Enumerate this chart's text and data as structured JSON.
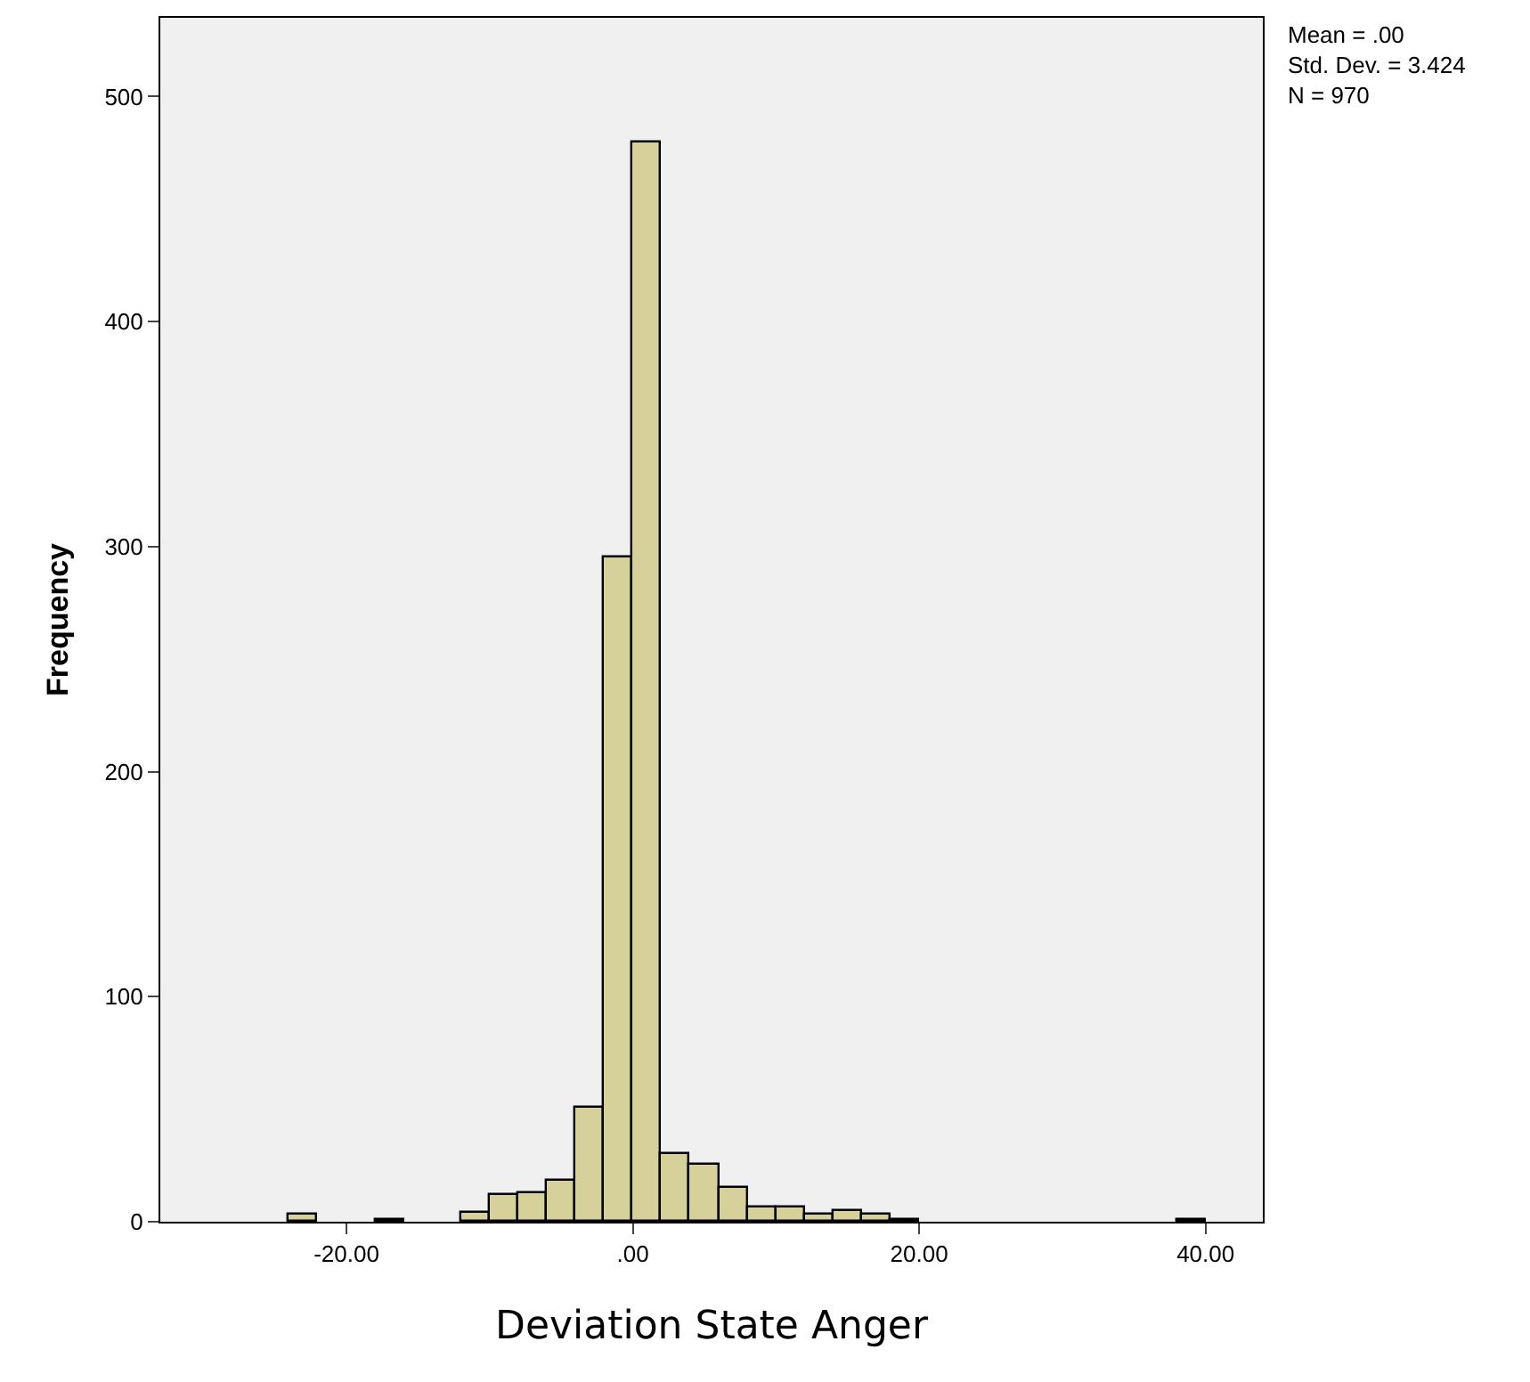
{
  "chart_data": {
    "type": "histogram",
    "xlabel": "Deviation State Anger",
    "ylabel": "Frequency",
    "bins": [
      -24,
      -22,
      -20,
      -18,
      -16,
      -14,
      -12,
      -10,
      -8,
      -6,
      -4,
      -2,
      0,
      2,
      4,
      6,
      8,
      10,
      12,
      14,
      16,
      18,
      20,
      22,
      24,
      26,
      28,
      30,
      32,
      34,
      36,
      38,
      40
    ],
    "values": [
      3,
      0,
      0,
      1,
      0,
      0,
      4,
      12,
      13,
      18,
      51,
      295,
      480,
      30,
      25,
      15,
      6,
      6,
      3,
      5,
      3,
      1,
      0,
      0,
      0,
      0,
      0,
      0,
      0,
      0,
      0,
      1
    ],
    "color": "#d6d09a",
    "xlim": [
      -33,
      44
    ],
    "xticks": [
      {
        "value": -20,
        "label": "-20.00"
      },
      {
        "value": 0,
        "label": ".00"
      },
      {
        "value": 20,
        "label": "20.00"
      },
      {
        "value": 40,
        "label": "40.00"
      }
    ],
    "ylim": [
      0,
      535
    ],
    "yticks": [
      0,
      100,
      200,
      300,
      400,
      500
    ],
    "grid": false,
    "annotations": [
      "Mean = .00\nStd. Dev. = 3.424\nN = 970"
    ]
  }
}
